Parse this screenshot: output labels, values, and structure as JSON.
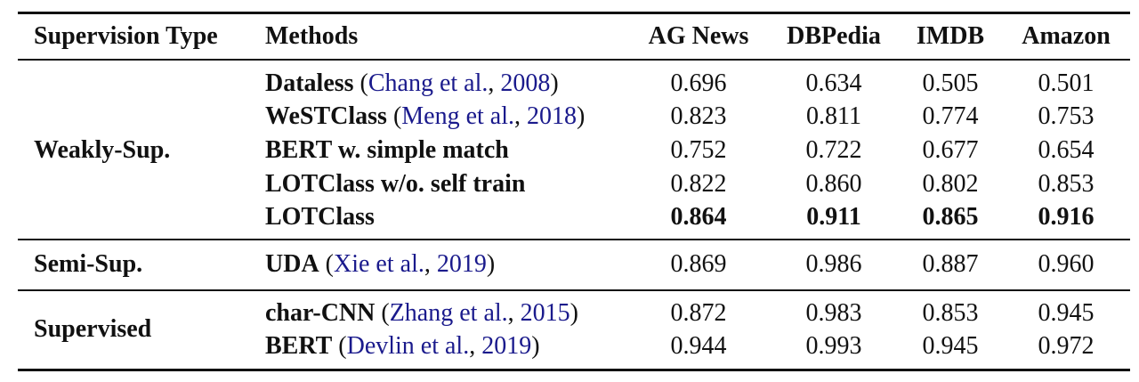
{
  "headers": {
    "supervision_type": "Supervision Type",
    "methods": "Methods",
    "ag_news": "AG News",
    "dbpedia": "DBPedia",
    "imdb": "IMDB",
    "amazon": "Amazon"
  },
  "groups": [
    {
      "label": "Weakly-Sup.",
      "rows": [
        {
          "method": "Dataless",
          "open": " (",
          "cite_authors": "Chang et al.",
          "sep": ", ",
          "cite_year": "2008",
          "close": ")",
          "values": [
            "0.696",
            "0.634",
            "0.505",
            "0.501"
          ],
          "bold": false
        },
        {
          "method": "WeSTClass",
          "open": " (",
          "cite_authors": "Meng et al.",
          "sep": ", ",
          "cite_year": "2018",
          "close": ")",
          "values": [
            "0.823",
            "0.811",
            "0.774",
            "0.753"
          ],
          "bold": false
        },
        {
          "method": "BERT w. simple match",
          "values": [
            "0.752",
            "0.722",
            "0.677",
            "0.654"
          ],
          "bold": false
        },
        {
          "method": "LOTClass w/o. self train",
          "values": [
            "0.822",
            "0.860",
            "0.802",
            "0.853"
          ],
          "bold": false
        },
        {
          "method": "LOTClass",
          "values": [
            "0.864",
            "0.911",
            "0.865",
            "0.916"
          ],
          "bold": true
        }
      ]
    },
    {
      "label": "Semi-Sup.",
      "rows": [
        {
          "method": "UDA",
          "open": " (",
          "cite_authors": "Xie et al.",
          "sep": ", ",
          "cite_year": "2019",
          "close": ")",
          "values": [
            "0.869",
            "0.986",
            "0.887",
            "0.960"
          ],
          "bold": false
        }
      ]
    },
    {
      "label": "Supervised",
      "rows": [
        {
          "method": "char-CNN",
          "open": " (",
          "cite_authors": "Zhang et al.",
          "sep": ", ",
          "cite_year": "2015",
          "close": ")",
          "values": [
            "0.872",
            "0.983",
            "0.853",
            "0.945"
          ],
          "bold": false
        },
        {
          "method": "BERT",
          "open": " (",
          "cite_authors": "Devlin et al.",
          "sep": ", ",
          "cite_year": "2019",
          "close": ")",
          "values": [
            "0.944",
            "0.993",
            "0.945",
            "0.972"
          ],
          "bold": false
        }
      ]
    }
  ]
}
